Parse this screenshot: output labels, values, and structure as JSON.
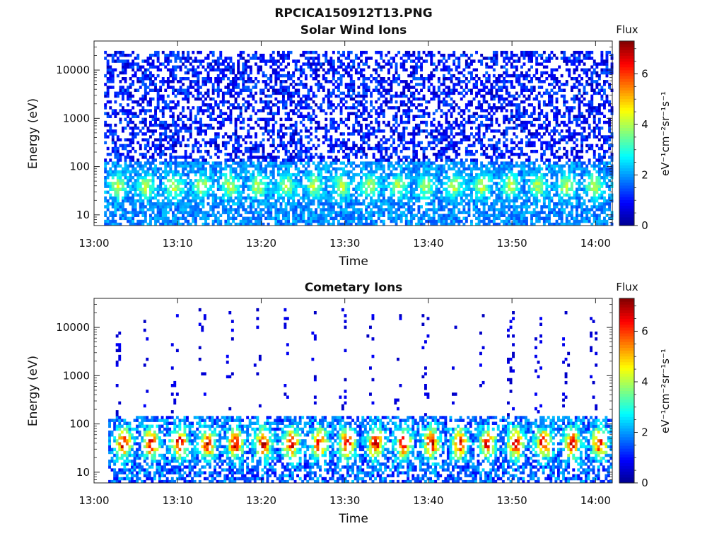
{
  "figure": {
    "title": "RPCICA150912T13.PNG"
  },
  "colormap": {
    "type": "jet",
    "stops": [
      "#00008f",
      "#0000ff",
      "#0080ff",
      "#00ffff",
      "#80ff80",
      "#ffff00",
      "#ff8000",
      "#ff0000",
      "#800000"
    ]
  },
  "chart_data": [
    {
      "type": "heatmap",
      "title": "Solar Wind Ions",
      "xlabel": "Time",
      "ylabel": "Energy (eV)",
      "x_ticks": [
        "13:00",
        "13:10",
        "13:20",
        "13:30",
        "13:40",
        "13:50",
        "14:00"
      ],
      "xlim_minutes": [
        0,
        62
      ],
      "y_scale": "log",
      "y_ticks": [
        10,
        100,
        1000,
        10000
      ],
      "y_tick_labels": [
        "10",
        "100",
        "1000",
        "10000"
      ],
      "ylim": [
        6,
        40000
      ],
      "colorbar": {
        "title": "Flux",
        "label": "eV⁻¹cm⁻²sr⁻¹s⁻¹",
        "range": [
          0,
          7.3
        ],
        "ticks": [
          0,
          2,
          4,
          6
        ],
        "tick_labels": [
          "0",
          "2",
          "4",
          "6"
        ]
      },
      "data_start_minute": 1.2,
      "data_end_minute": 62,
      "scan_period_minutes": 3.35,
      "background_level": 1.5,
      "peak_level": 4.8,
      "peak_energy_eV": 40
    },
    {
      "type": "heatmap",
      "title": "Cometary Ions",
      "xlabel": "Time",
      "ylabel": "Energy (eV)",
      "x_ticks": [
        "13:00",
        "13:10",
        "13:20",
        "13:30",
        "13:40",
        "13:50",
        "14:00"
      ],
      "xlim_minutes": [
        0,
        62
      ],
      "y_scale": "log",
      "y_ticks": [
        10,
        100,
        1000,
        10000
      ],
      "y_tick_labels": [
        "10",
        "100",
        "1000",
        "10000"
      ],
      "ylim": [
        6,
        40000
      ],
      "colorbar": {
        "title": "Flux",
        "label": "eV⁻¹cm⁻²sr⁻¹s⁻¹",
        "range": [
          0,
          7.3
        ],
        "ticks": [
          0,
          2,
          4,
          6
        ],
        "tick_labels": [
          "0",
          "2",
          "4",
          "6"
        ]
      },
      "data_start_minute": 1.7,
      "data_end_minute": 62,
      "scan_period_minutes": 3.35,
      "background_level": 1.2,
      "peak_level": 6.8,
      "peak_energy_eV": 40
    }
  ]
}
